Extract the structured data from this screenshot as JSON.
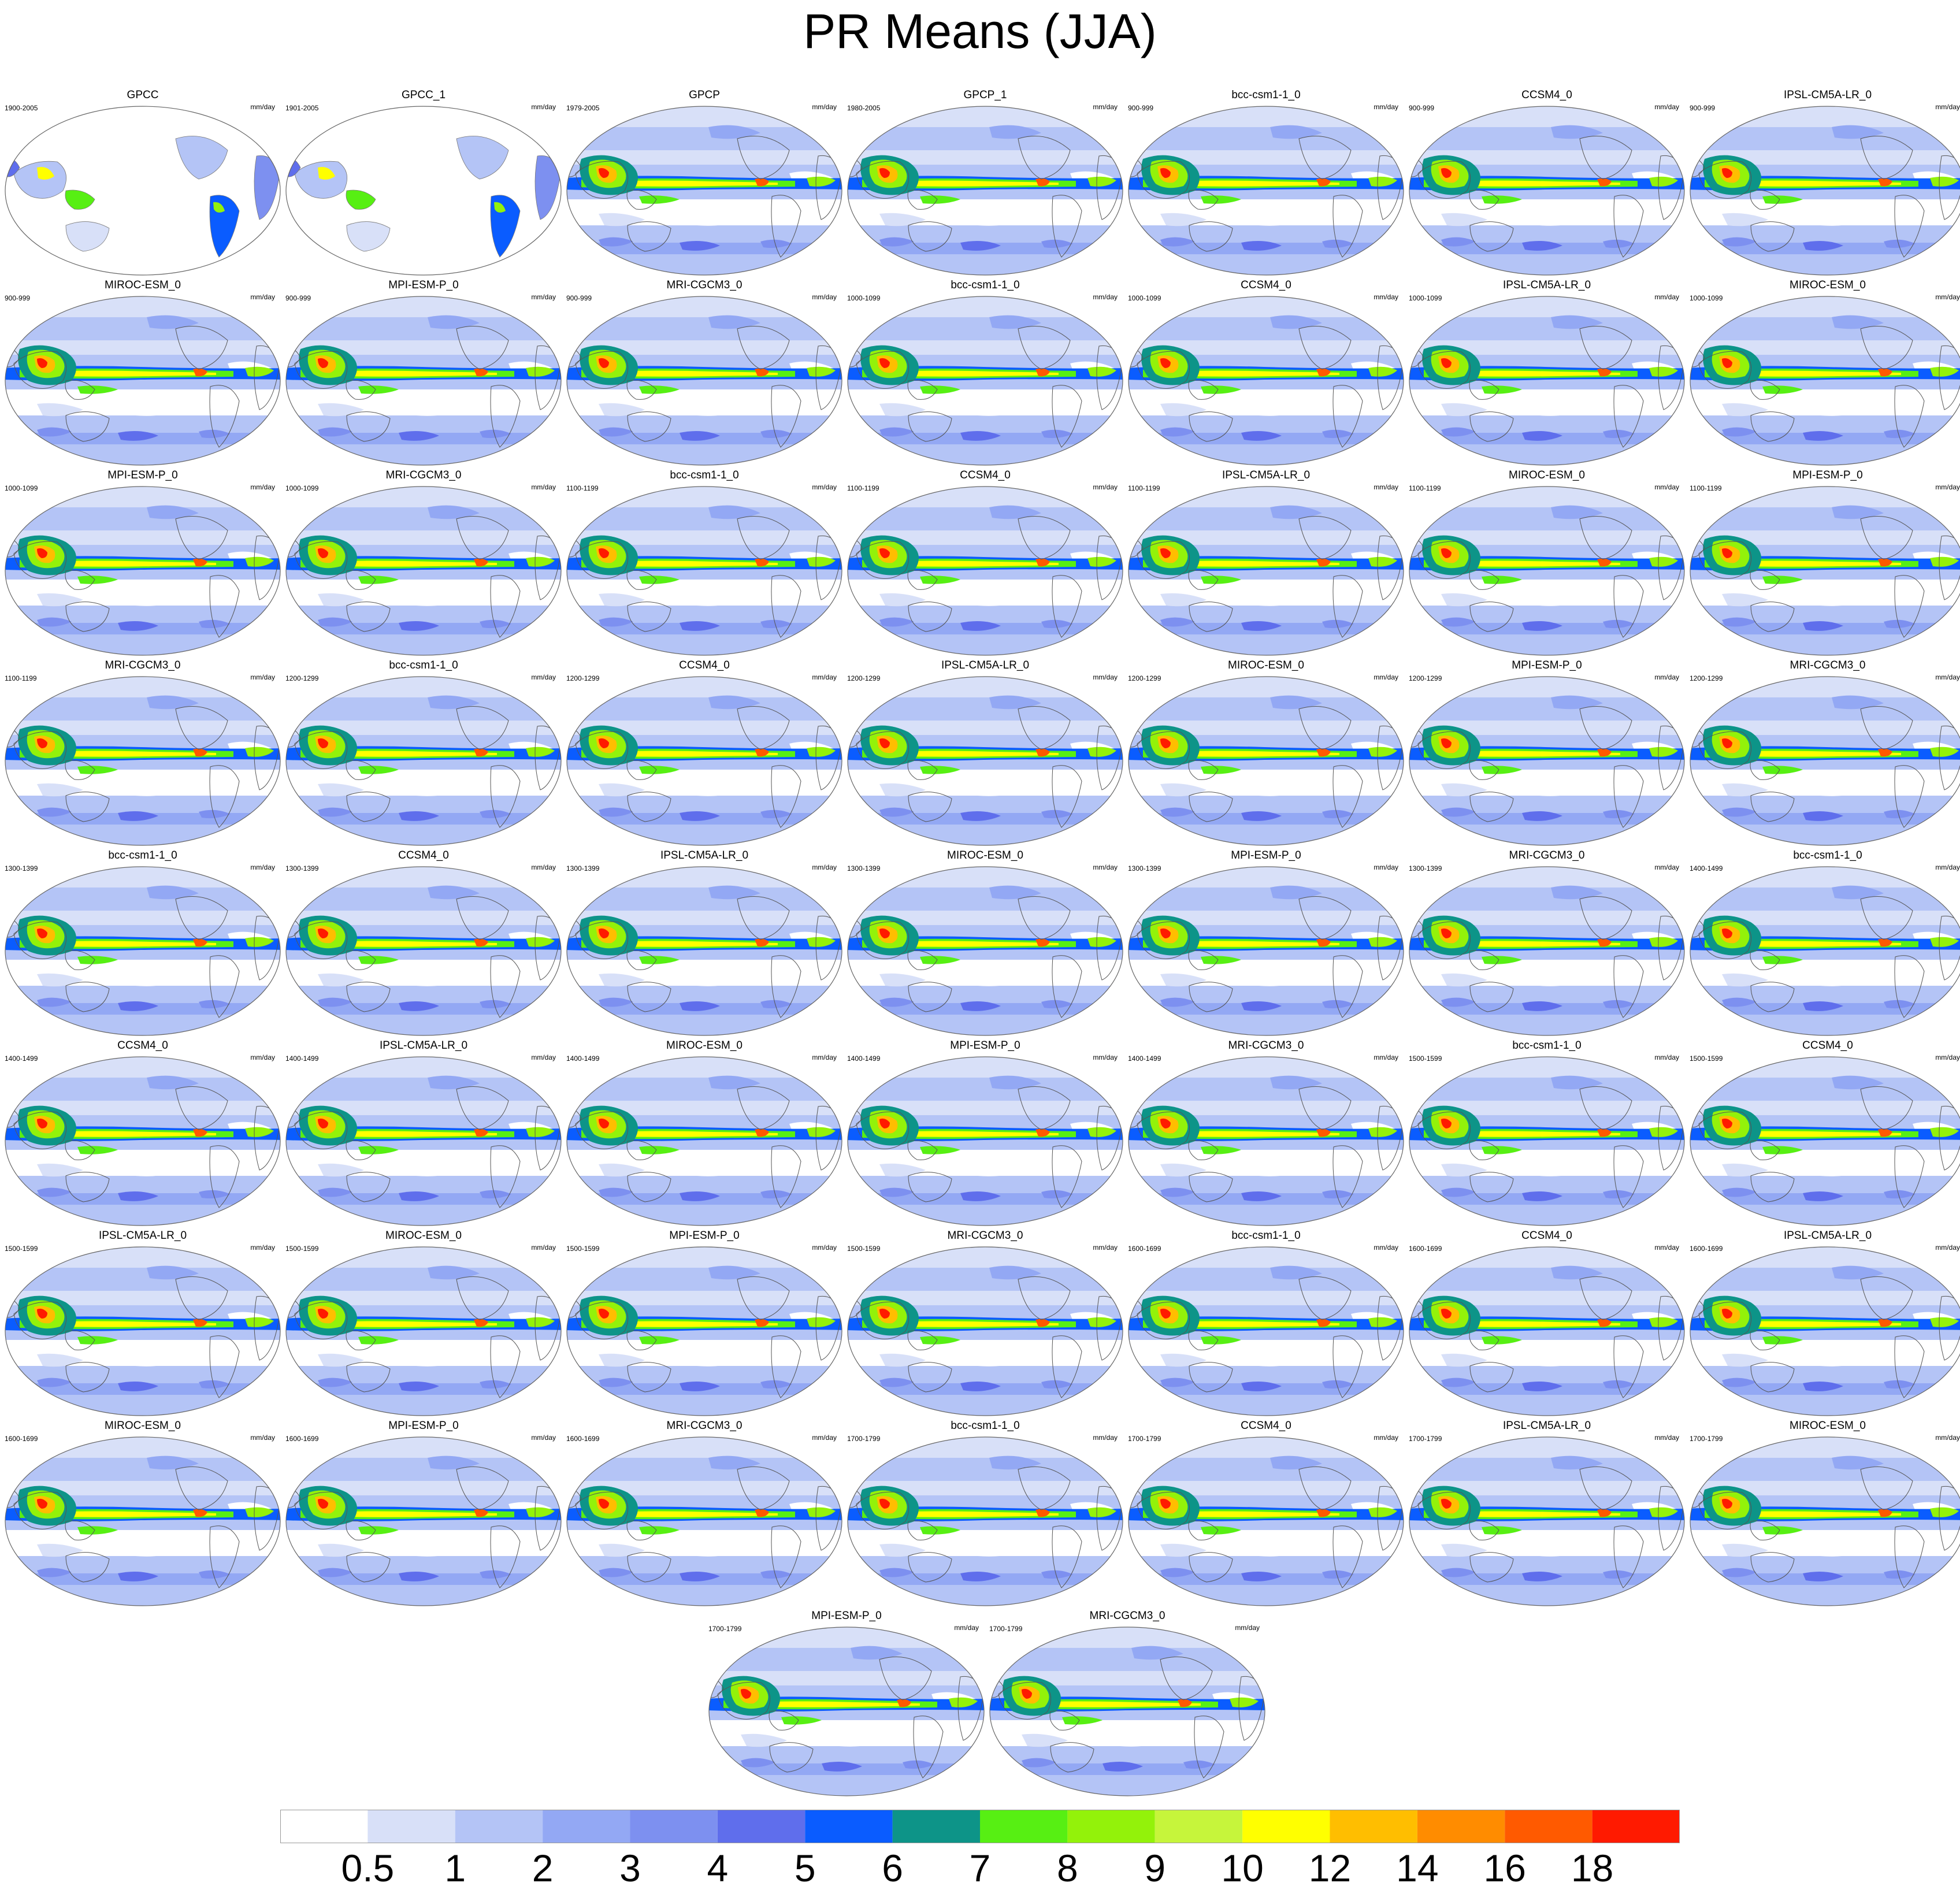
{
  "title": "PR Means (JJA)",
  "units_label": "mm/day",
  "colorbar": {
    "levels": [
      "0.5",
      "1",
      "2",
      "3",
      "4",
      "5",
      "6",
      "7",
      "8",
      "9",
      "10",
      "12",
      "14",
      "16",
      "18"
    ],
    "colors": [
      "#ffffff",
      "#d8e0f8",
      "#b4c4f6",
      "#93a8f4",
      "#7d90f0",
      "#5f6eec",
      "#0a5cff",
      "#0d9488",
      "#57ef13",
      "#93f20a",
      "#c6f53b",
      "#ffff00",
      "#ffbe00",
      "#ff8c00",
      "#ff5a00",
      "#ff1a00"
    ]
  },
  "chart_data": {
    "type": "map-grid",
    "variable": "PR",
    "season": "JJA",
    "units": "mm/day",
    "panels": [
      {
        "name": "GPCC",
        "period": "1900-2005",
        "land_only": true
      },
      {
        "name": "GPCC_1",
        "period": "1901-2005",
        "land_only": true
      },
      {
        "name": "GPCP",
        "period": "1979-2005"
      },
      {
        "name": "GPCP_1",
        "period": "1980-2005"
      },
      {
        "name": "bcc-csm1-1_0",
        "period": "900-999"
      },
      {
        "name": "CCSM4_0",
        "period": "900-999"
      },
      {
        "name": "IPSL-CM5A-LR_0",
        "period": "900-999"
      },
      {
        "name": "MIROC-ESM_0",
        "period": "900-999"
      },
      {
        "name": "MPI-ESM-P_0",
        "period": "900-999"
      },
      {
        "name": "MRI-CGCM3_0",
        "period": "900-999"
      },
      {
        "name": "bcc-csm1-1_0",
        "period": "1000-1099"
      },
      {
        "name": "CCSM4_0",
        "period": "1000-1099"
      },
      {
        "name": "IPSL-CM5A-LR_0",
        "period": "1000-1099"
      },
      {
        "name": "MIROC-ESM_0",
        "period": "1000-1099"
      },
      {
        "name": "MPI-ESM-P_0",
        "period": "1000-1099"
      },
      {
        "name": "MRI-CGCM3_0",
        "period": "1000-1099"
      },
      {
        "name": "bcc-csm1-1_0",
        "period": "1100-1199"
      },
      {
        "name": "CCSM4_0",
        "period": "1100-1199"
      },
      {
        "name": "IPSL-CM5A-LR_0",
        "period": "1100-1199"
      },
      {
        "name": "MIROC-ESM_0",
        "period": "1100-1199"
      },
      {
        "name": "MPI-ESM-P_0",
        "period": "1100-1199"
      },
      {
        "name": "MRI-CGCM3_0",
        "period": "1100-1199"
      },
      {
        "name": "bcc-csm1-1_0",
        "period": "1200-1299"
      },
      {
        "name": "CCSM4_0",
        "period": "1200-1299"
      },
      {
        "name": "IPSL-CM5A-LR_0",
        "period": "1200-1299"
      },
      {
        "name": "MIROC-ESM_0",
        "period": "1200-1299"
      },
      {
        "name": "MPI-ESM-P_0",
        "period": "1200-1299"
      },
      {
        "name": "MRI-CGCM3_0",
        "period": "1200-1299"
      },
      {
        "name": "bcc-csm1-1_0",
        "period": "1300-1399"
      },
      {
        "name": "CCSM4_0",
        "period": "1300-1399"
      },
      {
        "name": "IPSL-CM5A-LR_0",
        "period": "1300-1399"
      },
      {
        "name": "MIROC-ESM_0",
        "period": "1300-1399"
      },
      {
        "name": "MPI-ESM-P_0",
        "period": "1300-1399"
      },
      {
        "name": "MRI-CGCM3_0",
        "period": "1300-1399"
      },
      {
        "name": "bcc-csm1-1_0",
        "period": "1400-1499"
      },
      {
        "name": "CCSM4_0",
        "period": "1400-1499"
      },
      {
        "name": "IPSL-CM5A-LR_0",
        "period": "1400-1499"
      },
      {
        "name": "MIROC-ESM_0",
        "period": "1400-1499"
      },
      {
        "name": "MPI-ESM-P_0",
        "period": "1400-1499"
      },
      {
        "name": "MRI-CGCM3_0",
        "period": "1400-1499"
      },
      {
        "name": "bcc-csm1-1_0",
        "period": "1500-1599"
      },
      {
        "name": "CCSM4_0",
        "period": "1500-1599"
      },
      {
        "name": "IPSL-CM5A-LR_0",
        "period": "1500-1599"
      },
      {
        "name": "MIROC-ESM_0",
        "period": "1500-1599"
      },
      {
        "name": "MPI-ESM-P_0",
        "period": "1500-1599"
      },
      {
        "name": "MRI-CGCM3_0",
        "period": "1500-1599"
      },
      {
        "name": "bcc-csm1-1_0",
        "period": "1600-1699"
      },
      {
        "name": "CCSM4_0",
        "period": "1600-1699"
      },
      {
        "name": "IPSL-CM5A-LR_0",
        "period": "1600-1699"
      },
      {
        "name": "MIROC-ESM_0",
        "period": "1600-1699"
      },
      {
        "name": "MPI-ESM-P_0",
        "period": "1600-1699"
      },
      {
        "name": "MRI-CGCM3_0",
        "period": "1600-1699"
      },
      {
        "name": "bcc-csm1-1_0",
        "period": "1700-1799"
      },
      {
        "name": "CCSM4_0",
        "period": "1700-1799"
      },
      {
        "name": "IPSL-CM5A-LR_0",
        "period": "1700-1799"
      },
      {
        "name": "MIROC-ESM_0",
        "period": "1700-1799"
      },
      {
        "name": "MPI-ESM-P_0",
        "period": "1700-1799"
      },
      {
        "name": "MRI-CGCM3_0",
        "period": "1700-1799"
      }
    ]
  }
}
